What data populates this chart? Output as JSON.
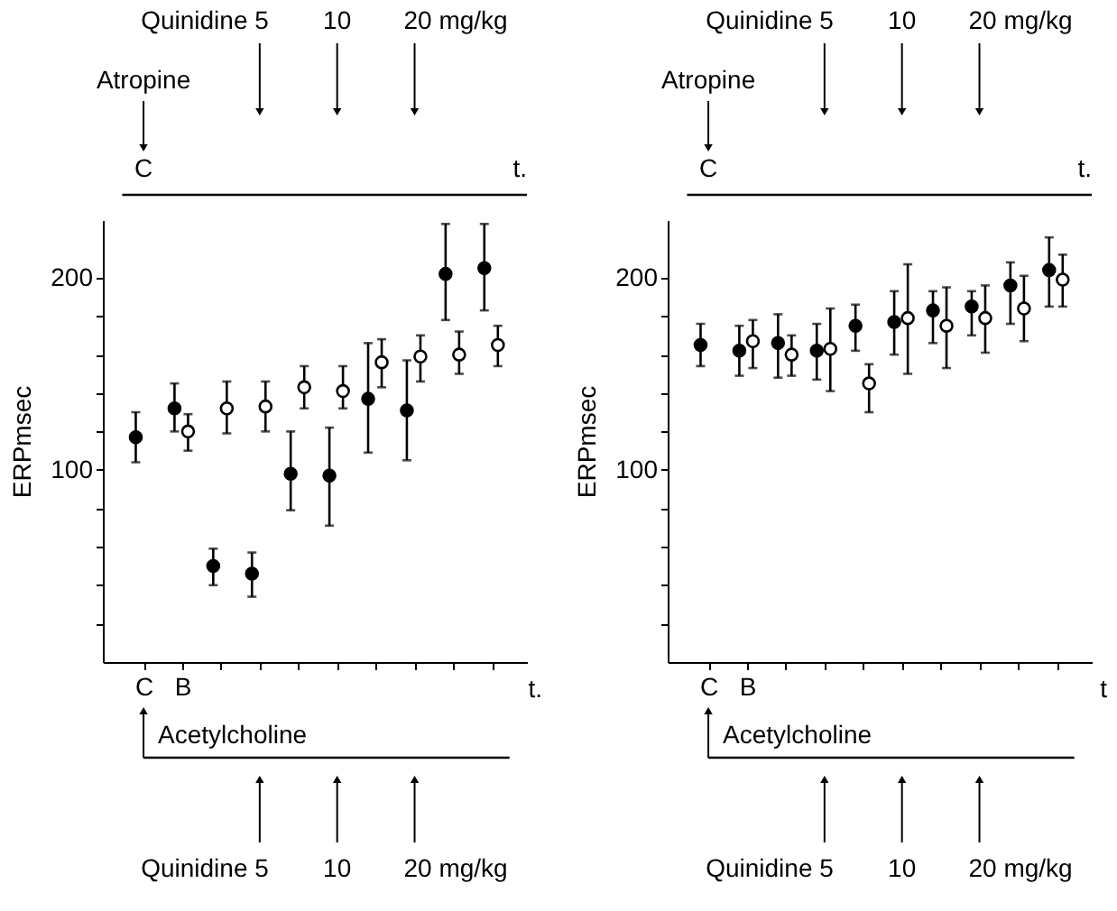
{
  "chart_data": [
    {
      "type": "scatter",
      "xlabel": "t.",
      "ylabel": "ERPmsec",
      "ylim": [
        0,
        230
      ],
      "categories": [
        "C",
        "B",
        null,
        null,
        null,
        null,
        null,
        null,
        null,
        null
      ],
      "yticks": [
        {
          "value": 20,
          "label": null
        },
        {
          "value": 40,
          "label": null
        },
        {
          "value": 60,
          "label": null
        },
        {
          "value": 80,
          "label": null
        },
        100,
        {
          "value": 120,
          "label": null
        },
        {
          "value": 140,
          "label": null
        },
        {
          "value": 160,
          "label": null
        },
        {
          "value": 180,
          "label": null
        },
        200
      ],
      "grid": false,
      "marker": "circle",
      "series": [
        {
          "color": "#000000",
          "values": [
            117,
            132,
            50,
            46,
            98,
            97,
            137,
            131,
            202,
            205
          ],
          "errors": [
            [
              104,
              130
            ],
            [
              120,
              145
            ],
            [
              40,
              59
            ],
            [
              34,
              57
            ],
            [
              79,
              120
            ],
            [
              71,
              122
            ],
            [
              109,
              166
            ],
            [
              105,
              157
            ],
            [
              178,
              228
            ],
            [
              183,
              228
            ]
          ]
        },
        {
          "color": "#000000",
          "values": [
            null,
            120,
            132,
            133,
            143,
            141,
            156,
            159,
            160,
            165
          ],
          "errors": [
            null,
            [
              110,
              129
            ],
            [
              119,
              146
            ],
            [
              120,
              146
            ],
            [
              132,
              154
            ],
            [
              132,
              154
            ],
            [
              143,
              168
            ],
            [
              146,
              170
            ],
            [
              150,
              172
            ],
            [
              154,
              175
            ]
          ]
        }
      ],
      "annotations": [
        "Quinidine 5",
        "10",
        "20 mg/kg",
        "Atropine",
        "C",
        "t.",
        "Acetylcholine",
        "Quinidine 5",
        "10",
        "20 mg/kg"
      ]
    },
    {
      "type": "scatter",
      "xlabel": "t",
      "ylabel": "ERPmsec",
      "ylim": [
        0,
        230
      ],
      "categories": [
        "C",
        "B",
        null,
        null,
        null,
        null,
        null,
        null,
        null,
        null
      ],
      "yticks": [
        {
          "value": 20,
          "label": null
        },
        {
          "value": 40,
          "label": null
        },
        {
          "value": 60,
          "label": null
        },
        {
          "value": 80,
          "label": null
        },
        100,
        {
          "value": 120,
          "label": null
        },
        {
          "value": 140,
          "label": null
        },
        {
          "value": 160,
          "label": null
        },
        {
          "value": 180,
          "label": null
        },
        200
      ],
      "grid": false,
      "marker": "circle",
      "series": [
        {
          "color": "#000000",
          "values": [
            165,
            162,
            166,
            162,
            175,
            177,
            183,
            185,
            196,
            204
          ],
          "errors": [
            [
              154,
              176
            ],
            [
              149,
              175
            ],
            [
              148,
              181
            ],
            [
              147,
              176
            ],
            [
              162,
              186
            ],
            [
              160,
              193
            ],
            [
              166,
              193
            ],
            [
              170,
              193
            ],
            [
              176,
              208
            ],
            [
              185,
              221
            ]
          ]
        },
        {
          "color": "#000000",
          "values": [
            null,
            167,
            160,
            163,
            145,
            179,
            175,
            179,
            184,
            199
          ],
          "errors": [
            null,
            [
              153,
              178
            ],
            [
              149,
              170
            ],
            [
              141,
              184
            ],
            [
              130,
              155
            ],
            [
              150,
              207
            ],
            [
              153,
              195
            ],
            [
              161,
              196
            ],
            [
              167,
              201
            ],
            [
              185,
              212
            ]
          ]
        }
      ],
      "annotations": [
        "Quinidine 5",
        "10",
        "20 mg/kg",
        "Atropine",
        "C",
        "t.",
        "Acetylcholine",
        "Quinidine 5",
        "10",
        "20 mg/kg"
      ]
    }
  ]
}
